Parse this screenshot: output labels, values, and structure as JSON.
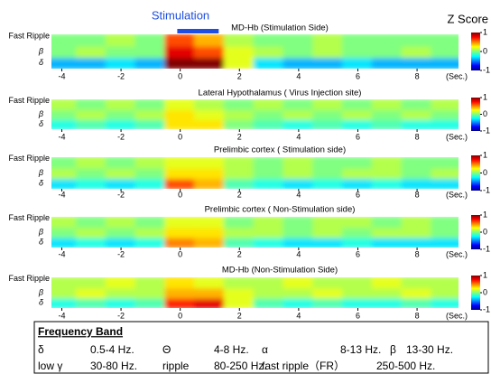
{
  "annotation": {
    "label": "Stimulation",
    "range": [
      -0.1,
      1.3
    ],
    "color": "#1f4fe0"
  },
  "colorbar_title": "Z Score",
  "chart_data": [
    {
      "type": "heatmap",
      "title": "MD-Hb (Stimulation Side)",
      "y": [
        "δ",
        "β",
        "Fast Ripple"
      ],
      "x": [
        -4,
        -3,
        -2,
        -1,
        0,
        1,
        2,
        3,
        4,
        5,
        6,
        7,
        8,
        9
      ],
      "z": [
        [
          -0.4,
          -0.4,
          -0.3,
          -0.4,
          1,
          1,
          0.2,
          -0.3,
          -0.4,
          -0.4,
          -0.3,
          -0.4,
          -0.4,
          -0.4
        ],
        [
          0,
          0.1,
          0,
          0,
          0.8,
          0.6,
          0.2,
          0.1,
          0,
          0.1,
          0,
          0,
          0.1,
          0
        ],
        [
          0,
          0,
          0.1,
          0,
          0.6,
          0.4,
          0.1,
          0,
          0,
          0.1,
          0,
          0,
          0,
          0
        ]
      ],
      "xlim": [
        -4.35,
        9.4
      ],
      "xticks": [
        -4,
        -2,
        0,
        2,
        4,
        6,
        8
      ],
      "xlabel": "(Sec.)",
      "clim": [
        -1,
        1
      ],
      "cticks": [
        1,
        0,
        -1
      ]
    },
    {
      "type": "heatmap",
      "title": "Lateral Hypothalamus ( Virus Injection site)",
      "y": [
        "δ",
        "β",
        "Fast Ripple"
      ],
      "x": [
        -4,
        -3,
        -2,
        -1,
        0,
        1,
        2,
        3,
        4,
        5,
        6,
        7,
        8,
        9
      ],
      "z": [
        [
          -0.2,
          -0.1,
          -0.2,
          -0.1,
          0.3,
          0.3,
          0,
          -0.1,
          -0.2,
          -0.1,
          -0.2,
          -0.1,
          -0.2,
          -0.2
        ],
        [
          0,
          0.1,
          0,
          0.1,
          0.3,
          0.2,
          0.1,
          0,
          0.1,
          0,
          0.1,
          0,
          0.1,
          0
        ],
        [
          0.1,
          0,
          0.1,
          0,
          0.2,
          0.1,
          0,
          0.1,
          0,
          0.1,
          0,
          0.1,
          0,
          0.1
        ]
      ],
      "xlim": [
        -4.35,
        9.4
      ],
      "xticks": [
        -4,
        -2,
        0,
        2,
        4,
        6,
        8
      ],
      "xlabel": "(Sec.)",
      "clim": [
        -1,
        1
      ],
      "cticks": [
        1,
        0,
        -1
      ]
    },
    {
      "type": "heatmap",
      "title": "Prelimbic cortex ( Stimulation side)",
      "y": [
        "δ",
        "β",
        "Fast Ripple"
      ],
      "x": [
        -4,
        -3,
        -2,
        -1,
        0,
        1,
        2,
        3,
        4,
        5,
        6,
        7,
        8,
        9
      ],
      "z": [
        [
          -0.3,
          -0.2,
          -0.3,
          -0.2,
          0.6,
          0.4,
          -0.1,
          -0.2,
          -0.3,
          -0.2,
          -0.3,
          -0.2,
          -0.3,
          -0.3
        ],
        [
          0.1,
          0,
          0.1,
          0,
          0.3,
          0.3,
          0.1,
          0,
          0.1,
          0,
          0.1,
          0.1,
          0,
          0.1
        ],
        [
          0,
          0.1,
          0,
          0.1,
          0.2,
          0.2,
          0.1,
          0,
          0.1,
          0,
          0,
          0.1,
          0,
          0
        ]
      ],
      "xlim": [
        -4.35,
        9.4
      ],
      "xticks": [
        -4,
        -2,
        0,
        2,
        4,
        6,
        8
      ],
      "xlabel": "(Sec.)",
      "clim": [
        -1,
        1
      ],
      "cticks": [
        1,
        0,
        -1
      ]
    },
    {
      "type": "heatmap",
      "title": "Prelimbic cortex ( Non-Stimulation side)",
      "y": [
        "δ",
        "β",
        "Fast Ripple"
      ],
      "x": [
        -4,
        -3,
        -2,
        -1,
        0,
        1,
        2,
        3,
        4,
        5,
        6,
        7,
        8,
        9
      ],
      "z": [
        [
          -0.3,
          -0.2,
          -0.3,
          -0.2,
          0.5,
          0.4,
          -0.1,
          -0.2,
          -0.3,
          -0.3,
          -0.2,
          -0.3,
          -0.3,
          -0.3
        ],
        [
          0,
          0.1,
          0,
          0.1,
          0.3,
          0.3,
          0.1,
          0.1,
          0,
          0.1,
          0,
          0.1,
          0.1,
          0
        ],
        [
          0.1,
          0,
          0.1,
          0,
          0.2,
          0.2,
          0,
          0.1,
          0,
          0.1,
          0.1,
          0,
          0.1,
          0
        ]
      ],
      "xlim": [
        -4.35,
        9.4
      ],
      "xticks": [
        -4,
        -2,
        0,
        2,
        4,
        6,
        8
      ],
      "xlabel": "(Sec.)",
      "clim": [
        -1,
        1
      ],
      "cticks": [
        1,
        0,
        -1
      ]
    },
    {
      "type": "heatmap",
      "title": "MD-Hb (Non-Stimulation Side)",
      "y": [
        "δ",
        "β",
        "Fast Ripple"
      ],
      "x": [
        -4,
        -3,
        -2,
        -1,
        0,
        1,
        2,
        3,
        4,
        5,
        6,
        7,
        8,
        9
      ],
      "z": [
        [
          -0.2,
          -0.1,
          -0.2,
          -0.1,
          0.7,
          0.8,
          0.2,
          -0.1,
          -0.2,
          -0.1,
          -0.2,
          -0.2,
          -0.1,
          -0.2
        ],
        [
          0.1,
          0.2,
          0.1,
          0.1,
          0.4,
          0.4,
          0.2,
          0.1,
          0.1,
          0.2,
          0.1,
          0.1,
          0.2,
          0.1
        ],
        [
          0.1,
          0.1,
          0.2,
          0.1,
          0.3,
          0.2,
          0.1,
          0.1,
          0.2,
          0.1,
          0.1,
          0.2,
          0.1,
          0.1
        ]
      ],
      "xlim": [
        -4.35,
        9.4
      ],
      "xticks": [
        -4,
        -2,
        0,
        2,
        4,
        6,
        8
      ],
      "xlabel": "(Sec.)",
      "clim": [
        -1,
        1
      ],
      "cticks": [
        1,
        0,
        -1
      ]
    }
  ],
  "frequency_band": {
    "title": "Frequency Band",
    "items": [
      {
        "symbol": "δ",
        "range": "0.5-4 Hz."
      },
      {
        "symbol": "Θ",
        "range": "4-8 Hz."
      },
      {
        "symbol": "α",
        "range": "8-13 Hz."
      },
      {
        "symbol": "β",
        "range": "13-30 Hz."
      },
      {
        "symbol": "low γ",
        "range": "30-80 Hz."
      },
      {
        "symbol": "ripple",
        "range": "80-250 Hz."
      },
      {
        "symbol": "fast ripple（FR）",
        "range": "250-500 Hz."
      }
    ]
  }
}
